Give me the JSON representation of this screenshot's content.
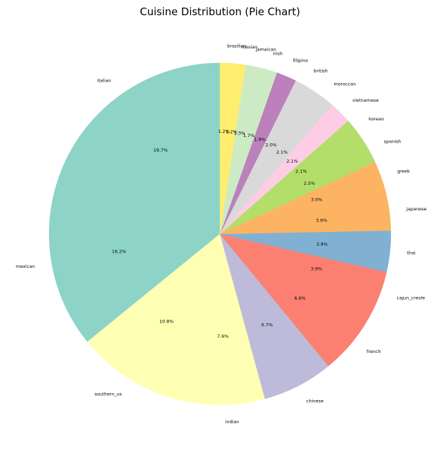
{
  "chart_data": {
    "type": "pie",
    "title": "Cuisine Distribution (Pie Chart)",
    "start_angle_deg": 90,
    "direction": "counterclockwise",
    "slices": [
      {
        "label": "italian",
        "pct": 19.7,
        "pct_label": "19.7%",
        "color": "#8dd3c7"
      },
      {
        "label": "mexican",
        "pct": 16.2,
        "pct_label": "16.2%",
        "color": "#8dd3c7"
      },
      {
        "label": "southern_us",
        "pct": 10.8,
        "pct_label": "10.8%",
        "color": "#ffffb3"
      },
      {
        "label": "indian",
        "pct": 7.6,
        "pct_label": "7.6%",
        "color": "#ffffb3"
      },
      {
        "label": "chinese",
        "pct": 6.7,
        "pct_label": "6.7%",
        "color": "#bebada"
      },
      {
        "label": "french",
        "pct": 6.6,
        "pct_label": "6.6%",
        "color": "#fb8072"
      },
      {
        "label": "cajun_creole",
        "pct": 3.9,
        "pct_label": "3.9%",
        "color": "#fb8072"
      },
      {
        "label": "thai",
        "pct": 3.9,
        "pct_label": "3.9%",
        "color": "#80b1d3"
      },
      {
        "label": "japanese",
        "pct": 3.6,
        "pct_label": "3.6%",
        "color": "#fdb462"
      },
      {
        "label": "greek",
        "pct": 3.0,
        "pct_label": "3.0%",
        "color": "#fdb462"
      },
      {
        "label": "spanish",
        "pct": 2.5,
        "pct_label": "2.5%",
        "color": "#b3de69"
      },
      {
        "label": "korean",
        "pct": 2.1,
        "pct_label": "2.1%",
        "color": "#b3de69"
      },
      {
        "label": "vietnamese",
        "pct": 2.1,
        "pct_label": "2.1%",
        "color": "#fccde5"
      },
      {
        "label": "moroccan",
        "pct": 2.1,
        "pct_label": "2.1%",
        "color": "#d9d9d9"
      },
      {
        "label": "british",
        "pct": 2.0,
        "pct_label": "2.0%",
        "color": "#d9d9d9"
      },
      {
        "label": "filipino",
        "pct": 1.9,
        "pct_label": "1.9%",
        "color": "#bc80bd"
      },
      {
        "label": "irish",
        "pct": 1.7,
        "pct_label": "1.7%",
        "color": "#ccebc5"
      },
      {
        "label": "jamaican",
        "pct": 1.3,
        "pct_label": "1.3%",
        "color": "#ccebc5"
      },
      {
        "label": "russian",
        "pct": 1.2,
        "pct_label": "1.2%",
        "color": "#ffed6f"
      },
      {
        "label": "brazilian",
        "pct": 1.2,
        "pct_label": "1.2%",
        "color": "#ffed6f"
      }
    ]
  }
}
